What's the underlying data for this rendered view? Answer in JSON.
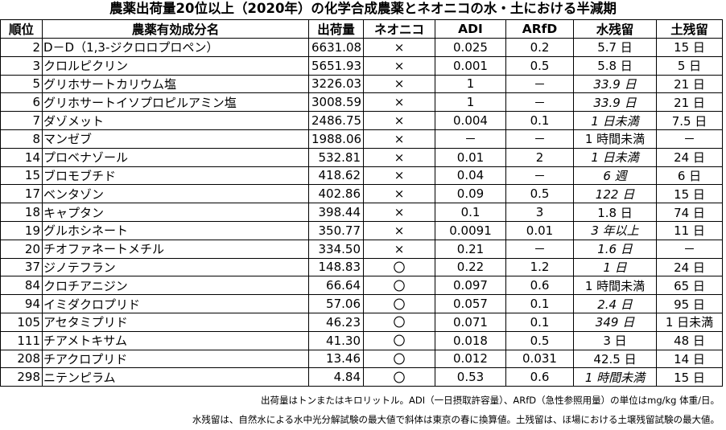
{
  "title": "農薬出荷量20位以上（2020年）の化学合成農薬とネオニコの水・土における半減期",
  "headers": [
    "順位",
    "農薬有効成分名",
    "出荷量",
    "ネオニコ",
    "ADI",
    "ARfD",
    "水残留",
    "土残留"
  ],
  "rows": [
    {
      "rank": "2",
      "name": "D－D（1,3-ジクロロプロペン）",
      "amount": "6631.08",
      "neo": "×",
      "adi": "0.025",
      "arfd": "0.2",
      "water": "5.7 日",
      "water_italic": false,
      "soil": "15 日"
    },
    {
      "rank": "3",
      "name": "クロルピクリン",
      "amount": "5651.93",
      "neo": "×",
      "adi": "0.001",
      "arfd": "0.5",
      "water": "5.8 日",
      "water_italic": false,
      "soil": "5 日"
    },
    {
      "rank": "5",
      "name": "グリホサートカリウム塩",
      "amount": "3226.03",
      "neo": "×",
      "adi": "1",
      "arfd": "－",
      "water": "33.9 日",
      "water_italic": true,
      "soil": "21 日"
    },
    {
      "rank": "6",
      "name": "グリホサートイソプロピルアミン塩",
      "amount": "3008.59",
      "neo": "×",
      "adi": "1",
      "arfd": "－",
      "water": "33.9 日",
      "water_italic": true,
      "soil": "21 日"
    },
    {
      "rank": "7",
      "name": "ダゾメット",
      "amount": "2486.75",
      "neo": "×",
      "adi": "0.004",
      "arfd": "0.1",
      "water": "1 日未満",
      "water_italic": true,
      "soil": "7.5 日"
    },
    {
      "rank": "8",
      "name": "マンゼブ",
      "amount": "1988.06",
      "neo": "×",
      "adi": "－",
      "arfd": "－",
      "water": "1 時間未満",
      "water_italic": false,
      "soil": "－"
    },
    {
      "rank": "14",
      "name": "プロベナゾール",
      "amount": "532.81",
      "neo": "×",
      "adi": "0.01",
      "arfd": "2",
      "water": "1 日未満",
      "water_italic": true,
      "soil": "24 日"
    },
    {
      "rank": "15",
      "name": "ブロモブチド",
      "amount": "418.62",
      "neo": "×",
      "adi": "0.04",
      "arfd": "－",
      "water": "6 週",
      "water_italic": true,
      "soil": "6 日"
    },
    {
      "rank": "17",
      "name": "ベンタゾン",
      "amount": "402.86",
      "neo": "×",
      "adi": "0.09",
      "arfd": "0.5",
      "water": "122 日",
      "water_italic": true,
      "soil": "15 日"
    },
    {
      "rank": "18",
      "name": "キャプタン",
      "amount": "398.44",
      "neo": "×",
      "adi": "0.1",
      "arfd": "3",
      "water": "1.8 日",
      "water_italic": false,
      "soil": "74 日"
    },
    {
      "rank": "19",
      "name": "グルホシネート",
      "amount": "350.77",
      "neo": "×",
      "adi": "0.0091",
      "arfd": "0.01",
      "water": "3 年以上",
      "water_italic": true,
      "soil": "11 日"
    },
    {
      "rank": "20",
      "name": "チオファネートメチル",
      "amount": "334.50",
      "neo": "×",
      "adi": "0.21",
      "arfd": "－",
      "water": "1.6 日",
      "water_italic": true,
      "soil": "－"
    },
    {
      "rank": "37",
      "name": "ジノテフラン",
      "amount": "148.83",
      "neo": "〇",
      "adi": "0.22",
      "arfd": "1.2",
      "water": "1 日",
      "water_italic": true,
      "soil": "24 日"
    },
    {
      "rank": "84",
      "name": "クロチアニジン",
      "amount": "66.64",
      "neo": "〇",
      "adi": "0.097",
      "arfd": "0.6",
      "water": "1 時間未満",
      "water_italic": false,
      "soil": "65 日"
    },
    {
      "rank": "94",
      "name": "イミダクロプリド",
      "amount": "57.06",
      "neo": "〇",
      "adi": "0.057",
      "arfd": "0.1",
      "water": "2.4 日",
      "water_italic": true,
      "soil": "95 日"
    },
    {
      "rank": "105",
      "name": "アセタミプリド",
      "amount": "46.23",
      "neo": "〇",
      "adi": "0.071",
      "arfd": "0.1",
      "water": "349 日",
      "water_italic": true,
      "soil": "1 日未満"
    },
    {
      "rank": "111",
      "name": "チアメトキサム",
      "amount": "41.30",
      "neo": "〇",
      "adi": "0.018",
      "arfd": "0.5",
      "water": "3 日",
      "water_italic": false,
      "soil": "48 日"
    },
    {
      "rank": "208",
      "name": "チアクロプリド",
      "amount": "13.46",
      "neo": "〇",
      "adi": "0.012",
      "arfd": "0.031",
      "water": "42.5 日",
      "water_italic": false,
      "soil": "14 日"
    },
    {
      "rank": "298",
      "name": "ニテンピラム",
      "amount": "4.84",
      "neo": "〇",
      "adi": "0.53",
      "arfd": "0.6",
      "water": "1 時間未満",
      "water_italic": true,
      "soil": "15 日"
    }
  ],
  "notes": [
    "出荷量はトンまたはキロリットル。ADI（一日摂取許容量）、ARfD（急性参照用量）の単位はmg/kg 体重/日。",
    "水残留は、自然水による水中光分解試験の最大値で斜体は東京の春に換算値。土残留は、ほ場における土壌残留試験の最大値。"
  ]
}
